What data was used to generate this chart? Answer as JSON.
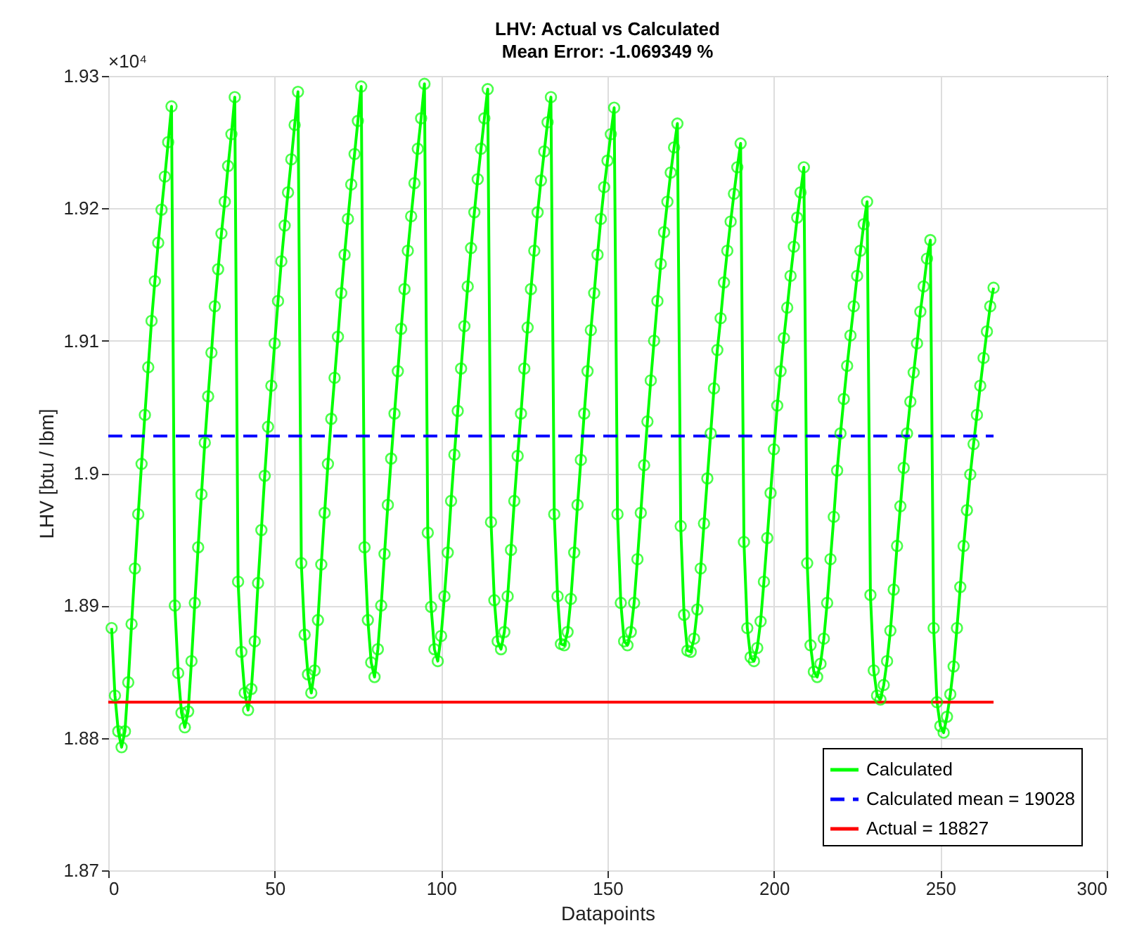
{
  "chart_data": {
    "type": "line",
    "title": "LHV: Actual vs Calculated",
    "subtitle": "Mean Error: -1.069349 %",
    "xlabel": "Datapoints",
    "ylabel": "LHV [btu / lbm]",
    "annotations": [
      "×10⁴"
    ],
    "xlim": [
      0,
      300
    ],
    "xticks": [
      0,
      50,
      100,
      150,
      200,
      250,
      300
    ],
    "ylim": [
      1.87,
      1.93
    ],
    "yticks": [
      1.87,
      1.88,
      1.89,
      1.9,
      1.91,
      1.92,
      1.93
    ],
    "grid": true,
    "legend": "bottom right",
    "series": [
      {
        "name": "Calculated",
        "color": "#00ff00",
        "marker": "circle",
        "line_style": "solid",
        "x": [
          1,
          2,
          3,
          4,
          5,
          6,
          7,
          8,
          9,
          10,
          11,
          12,
          13,
          14,
          15,
          16,
          17,
          18,
          19,
          20,
          21,
          22,
          23,
          24,
          25,
          26,
          27,
          28,
          29,
          30,
          31,
          32,
          33,
          34,
          35,
          36,
          37,
          38,
          39,
          40,
          41,
          42,
          43,
          44,
          45,
          46,
          47,
          48,
          49,
          50,
          51,
          52,
          53,
          54,
          55,
          56,
          57,
          58,
          59,
          60,
          61,
          62,
          63,
          64,
          65,
          66,
          67,
          68,
          69,
          70,
          71,
          72,
          73,
          74,
          75,
          76,
          77,
          78,
          79,
          80,
          81,
          82,
          83,
          84,
          85,
          86,
          87,
          88,
          89,
          90,
          91,
          92,
          93,
          94,
          95,
          96,
          97,
          98,
          99,
          100,
          101,
          102,
          103,
          104,
          105,
          106,
          107,
          108,
          109,
          110,
          111,
          112,
          113,
          114,
          115,
          116,
          117,
          118,
          119,
          120,
          121,
          122,
          123,
          124,
          125,
          126,
          127,
          128,
          129,
          130,
          131,
          132,
          133,
          134,
          135,
          136,
          137,
          138,
          139,
          140,
          141,
          142,
          143,
          144,
          145,
          146,
          147,
          148,
          149,
          150,
          151,
          152,
          153,
          154,
          155,
          156,
          157,
          158,
          159,
          160,
          161,
          162,
          163,
          164,
          165,
          166,
          167,
          168,
          169,
          170,
          171,
          172,
          173,
          174,
          175,
          176,
          177,
          178,
          179,
          180,
          181,
          182,
          183,
          184,
          185,
          186,
          187,
          188,
          189,
          190,
          191,
          192,
          193,
          194,
          195,
          196,
          197,
          198,
          199,
          200,
          201,
          202,
          203,
          204,
          205,
          206,
          207,
          208,
          209,
          210,
          211,
          212,
          213,
          214,
          215,
          216,
          217,
          218,
          219,
          220,
          221,
          222,
          223,
          224,
          225,
          226,
          227,
          228,
          229,
          230,
          231,
          232,
          233,
          234,
          235,
          236,
          237,
          238,
          239,
          240,
          241,
          242,
          243,
          244,
          245,
          246,
          247,
          248,
          249,
          250,
          251,
          252,
          253,
          254,
          255,
          256,
          257,
          258,
          259,
          260,
          261,
          262,
          263,
          264,
          265,
          266
        ],
        "values": [
          1.8883,
          1.8832,
          1.8805,
          1.8793,
          1.8805,
          1.8842,
          1.8886,
          1.8928,
          1.8969,
          1.9007,
          1.9044,
          1.908,
          1.9115,
          1.9145,
          1.9174,
          1.9199,
          1.9224,
          1.925,
          1.9277,
          1.89,
          1.8849,
          1.8819,
          1.8808,
          1.882,
          1.8858,
          1.8902,
          1.8944,
          1.8984,
          1.9023,
          1.9058,
          1.9091,
          1.9126,
          1.9154,
          1.9181,
          1.9205,
          1.9232,
          1.9256,
          1.9284,
          1.8918,
          1.8865,
          1.8834,
          1.8821,
          1.8837,
          1.8873,
          1.8917,
          1.8957,
          1.8998,
          1.9035,
          1.9066,
          1.9098,
          1.913,
          1.916,
          1.9187,
          1.9212,
          1.9237,
          1.9263,
          1.9288,
          1.8932,
          1.8878,
          1.8848,
          1.8834,
          1.8851,
          1.8889,
          1.8931,
          1.897,
          1.9007,
          1.9041,
          1.9072,
          1.9103,
          1.9136,
          1.9165,
          1.9192,
          1.9218,
          1.9241,
          1.9266,
          1.9292,
          1.8944,
          1.8889,
          1.8857,
          1.8846,
          1.8867,
          1.89,
          1.8939,
          1.8976,
          1.9011,
          1.9045,
          1.9077,
          1.9109,
          1.9139,
          1.9168,
          1.9194,
          1.9219,
          1.9245,
          1.9268,
          1.9294,
          1.8955,
          1.8899,
          1.8867,
          1.8858,
          1.8877,
          1.8907,
          1.894,
          1.8979,
          1.9014,
          1.9047,
          1.9079,
          1.9111,
          1.9141,
          1.917,
          1.9197,
          1.9222,
          1.9245,
          1.9268,
          1.929,
          1.8963,
          1.8904,
          1.8873,
          1.8867,
          1.888,
          1.8907,
          1.8942,
          1.8979,
          1.9013,
          1.9045,
          1.9079,
          1.911,
          1.9139,
          1.9168,
          1.9197,
          1.9221,
          1.9243,
          1.9265,
          1.9284,
          1.8969,
          1.8907,
          1.8871,
          1.887,
          1.888,
          1.8905,
          1.894,
          1.8976,
          1.901,
          1.9045,
          1.9077,
          1.9108,
          1.9136,
          1.9165,
          1.9192,
          1.9216,
          1.9236,
          1.9256,
          1.9276,
          1.8969,
          1.8902,
          1.8873,
          1.887,
          1.888,
          1.8902,
          1.8935,
          1.897,
          1.9006,
          1.9039,
          1.907,
          1.91,
          1.913,
          1.9158,
          1.9182,
          1.9205,
          1.9227,
          1.9246,
          1.9264,
          1.896,
          1.8893,
          1.8866,
          1.8865,
          1.8875,
          1.8897,
          1.8928,
          1.8962,
          1.8996,
          1.903,
          1.9064,
          1.9093,
          1.9117,
          1.9144,
          1.9168,
          1.919,
          1.9211,
          1.9231,
          1.9249,
          1.8948,
          1.8883,
          1.8861,
          1.8858,
          1.8868,
          1.8888,
          1.8918,
          1.8951,
          1.8985,
          1.9018,
          1.9051,
          1.9077,
          1.9102,
          1.9125,
          1.9149,
          1.9171,
          1.9193,
          1.9212,
          1.9231,
          1.8932,
          1.887,
          1.885,
          1.8846,
          1.8856,
          1.8875,
          1.8902,
          1.8935,
          1.8967,
          1.9002,
          1.903,
          1.9056,
          1.9081,
          1.9104,
          1.9126,
          1.9149,
          1.9168,
          1.9188,
          1.9205,
          1.8908,
          1.8851,
          1.8832,
          1.8829,
          1.884,
          1.8858,
          1.8881,
          1.8912,
          1.8945,
          1.8975,
          1.9004,
          1.903,
          1.9054,
          1.9076,
          1.9098,
          1.9122,
          1.9141,
          1.9162,
          1.9176,
          1.8883,
          1.8827,
          1.8809,
          1.8804,
          1.8816,
          1.8833,
          1.8854,
          1.8883,
          1.8914,
          1.8945,
          1.8972,
          1.8999,
          1.9022,
          1.9044,
          1.9066,
          1.9087,
          1.9107,
          1.9126,
          1.914
        ]
      },
      {
        "name": "Calculated mean = 19028",
        "color": "#0000ff",
        "line_style": "dashed",
        "x": [
          0,
          266
        ],
        "values": [
          1.9028,
          1.9028
        ]
      },
      {
        "name": "Actual = 18827",
        "color": "#ff0000",
        "line_style": "solid",
        "x": [
          0,
          266
        ],
        "values": [
          1.8827,
          1.8827
        ]
      }
    ]
  }
}
